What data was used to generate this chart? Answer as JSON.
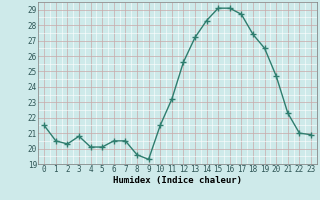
{
  "x": [
    0,
    1,
    2,
    3,
    4,
    5,
    6,
    7,
    8,
    9,
    10,
    11,
    12,
    13,
    14,
    15,
    16,
    17,
    18,
    19,
    20,
    21,
    22,
    23
  ],
  "y": [
    21.5,
    20.5,
    20.3,
    20.8,
    20.1,
    20.1,
    20.5,
    20.5,
    19.6,
    19.3,
    21.5,
    23.2,
    25.6,
    27.2,
    28.3,
    29.1,
    29.1,
    28.7,
    27.4,
    26.5,
    24.7,
    22.3,
    21.0,
    20.9
  ],
  "line_color": "#2e7d6e",
  "marker": "+",
  "marker_size": 4,
  "bg_color": "#ceeaea",
  "grid_color_major": "#c8a8a8",
  "grid_color_minor": "#ffffff",
  "xlabel": "Humidex (Indice chaleur)",
  "ylim": [
    19,
    29.5
  ],
  "xlim": [
    -0.5,
    23.5
  ],
  "yticks": [
    19,
    20,
    21,
    22,
    23,
    24,
    25,
    26,
    27,
    28,
    29
  ],
  "xticks": [
    0,
    1,
    2,
    3,
    4,
    5,
    6,
    7,
    8,
    9,
    10,
    11,
    12,
    13,
    14,
    15,
    16,
    17,
    18,
    19,
    20,
    21,
    22,
    23
  ],
  "tick_fontsize": 5.5,
  "label_fontsize": 6.5,
  "line_width": 1.0
}
